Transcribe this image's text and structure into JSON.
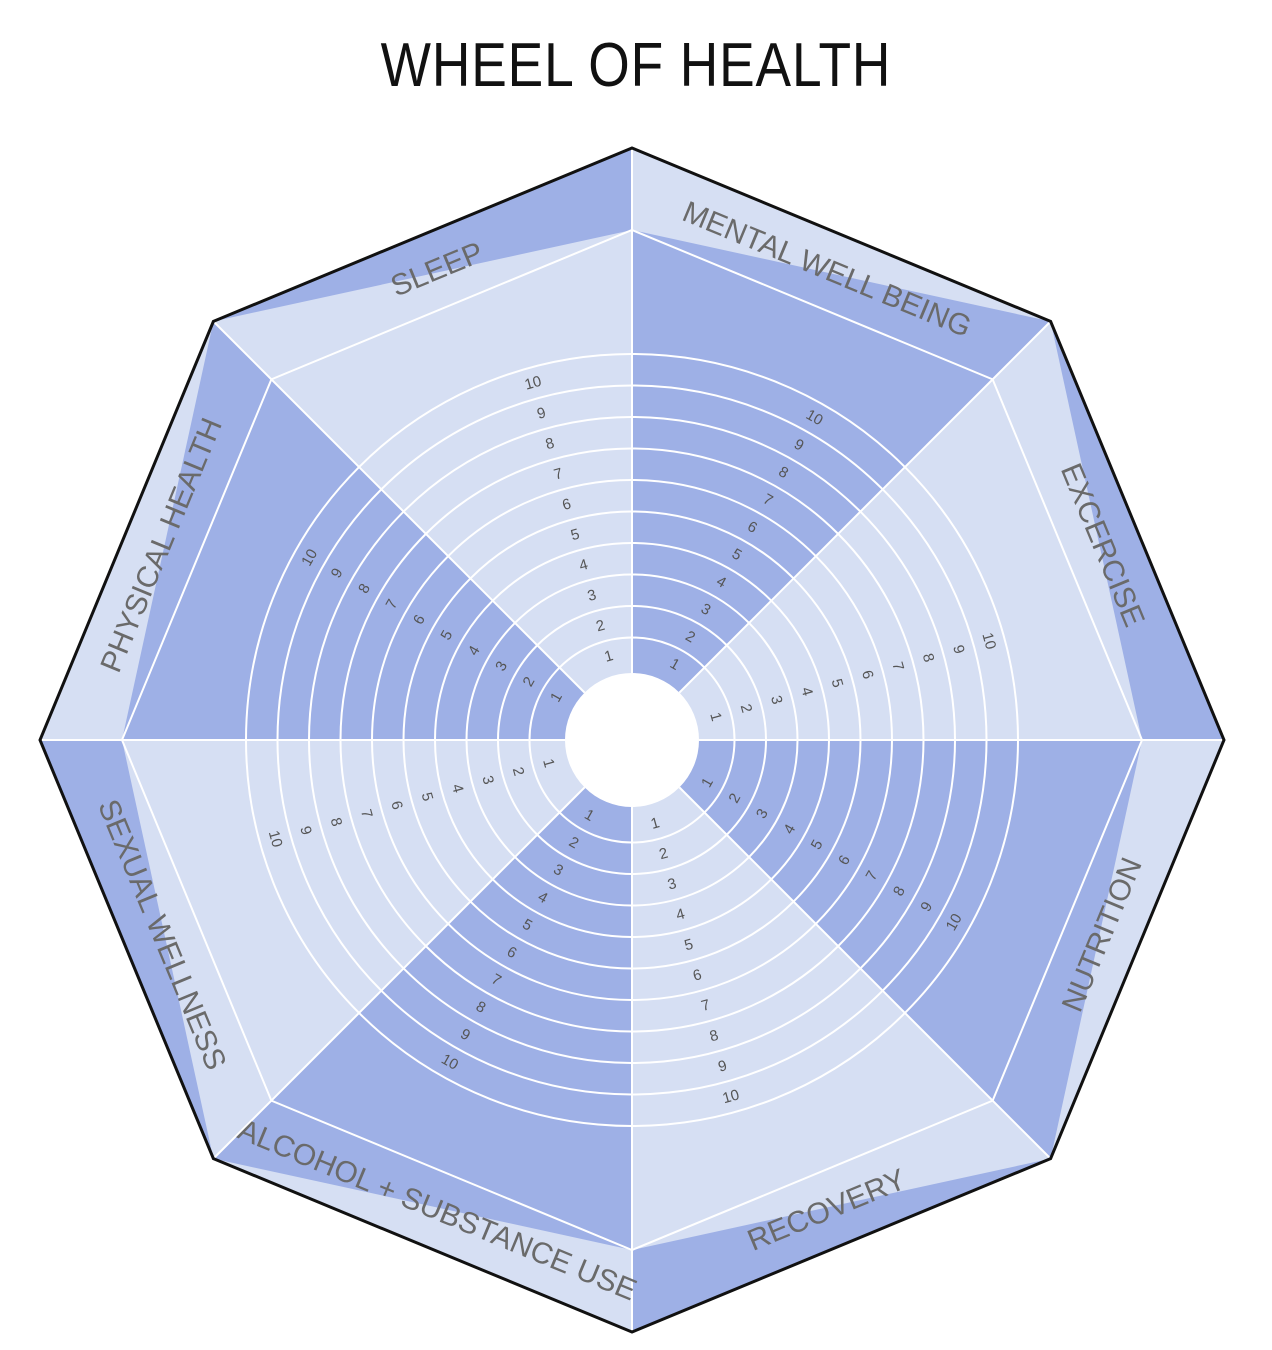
{
  "title": "WHEEL OF HEALTH",
  "colors": {
    "light_fill": "#d6dff3",
    "dark_fill": "#9eb0e6",
    "ring_line": "#ffffff",
    "outline": "#111111",
    "label_text": "#6a6a6a",
    "number_text": "#555555"
  },
  "scale": {
    "min": 1,
    "max": 10,
    "labels": [
      "1",
      "2",
      "3",
      "4",
      "5",
      "6",
      "7",
      "8",
      "9",
      "10"
    ]
  },
  "segments": [
    {
      "label": "SLEEP",
      "shade": "light"
    },
    {
      "label": "MENTAL WELL BEING",
      "shade": "dark"
    },
    {
      "label": "EXCERCISE",
      "shade": "light"
    },
    {
      "label": "NUTRITION",
      "shade": "dark"
    },
    {
      "label": "RECOVERY",
      "shade": "light"
    },
    {
      "label": "ALCOHOL + SUBSTANCE USE",
      "shade": "dark"
    },
    {
      "label": "SEXUAL WELLNESS",
      "shade": "light"
    },
    {
      "label": "PHYSICAL HEALTH",
      "shade": "dark"
    }
  ]
}
